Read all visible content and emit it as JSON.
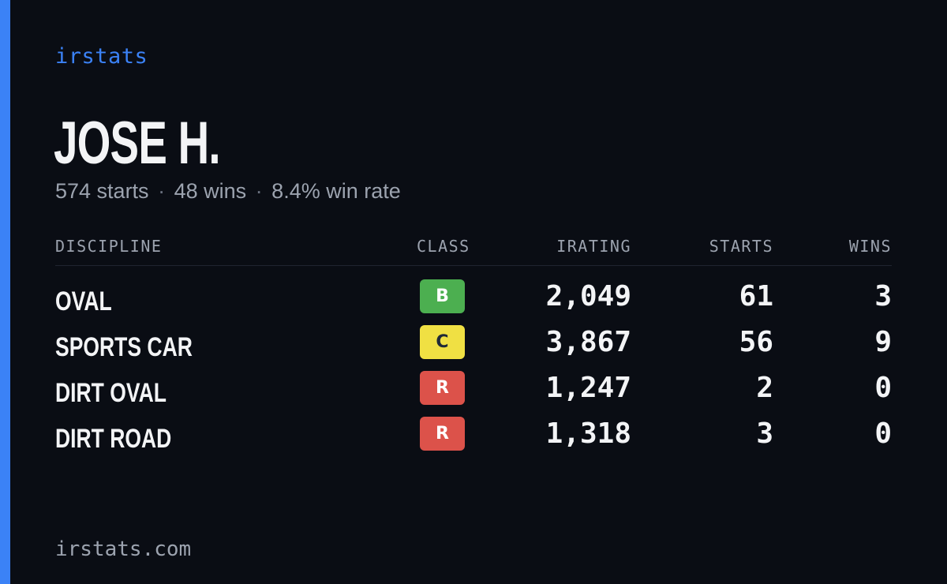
{
  "brand": "irstats",
  "driver": {
    "name": "JOSE H.",
    "starts_text": "574 starts",
    "wins_text": "48 wins",
    "win_rate_text": "8.4% win rate",
    "separator": "·"
  },
  "table": {
    "headers": {
      "discipline": "DISCIPLINE",
      "class": "CLASS",
      "irating": "IRATING",
      "starts": "STARTS",
      "wins": "WINS"
    },
    "rows": [
      {
        "discipline": "OVAL",
        "class": "B",
        "class_color": "#4caf50",
        "class_text_color": "#ffffff",
        "irating": "2,049",
        "starts": "61",
        "wins": "3"
      },
      {
        "discipline": "SPORTS CAR",
        "class": "C",
        "class_color": "#f0e043",
        "class_text_color": "#1f2937",
        "irating": "3,867",
        "starts": "56",
        "wins": "9"
      },
      {
        "discipline": "DIRT OVAL",
        "class": "R",
        "class_color": "#dc524a",
        "class_text_color": "#ffffff",
        "irating": "1,247",
        "starts": "2",
        "wins": "0"
      },
      {
        "discipline": "DIRT ROAD",
        "class": "R",
        "class_color": "#dc524a",
        "class_text_color": "#ffffff",
        "irating": "1,318",
        "starts": "3",
        "wins": "0"
      }
    ]
  },
  "footer": {
    "domain": "irstats.com"
  },
  "colors": {
    "accent": "#3b82f6",
    "background": "#0a0d14"
  }
}
